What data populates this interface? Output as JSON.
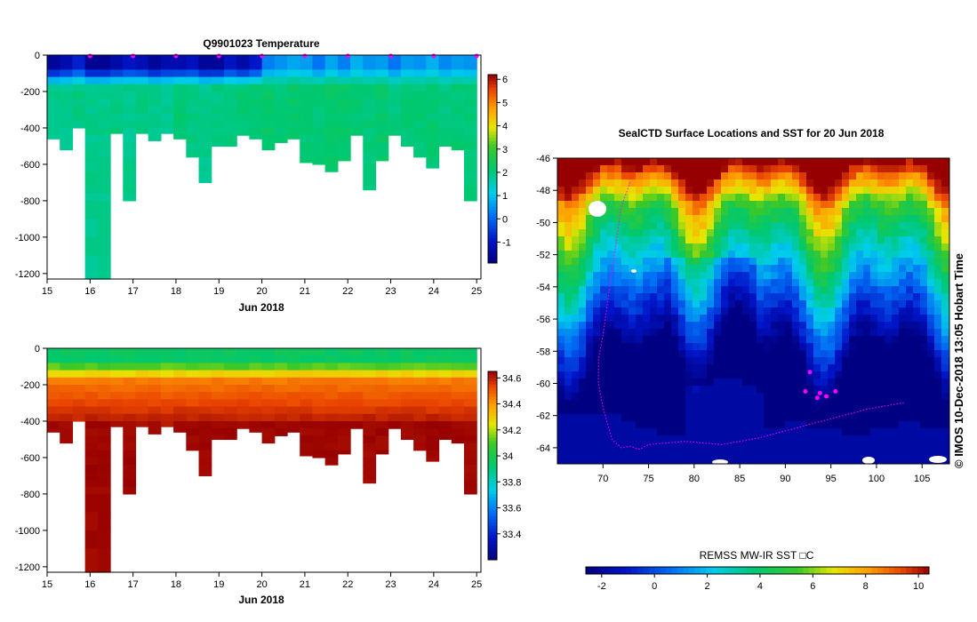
{
  "chart_data": [
    {
      "type": "heatmap",
      "id": "temp",
      "title": "Q9901023  Temperature",
      "xlabel": "Jun 2018",
      "xlim": [
        15,
        25.1
      ],
      "ylim": [
        -1230,
        0
      ],
      "x_ticks": [
        15,
        16,
        17,
        18,
        19,
        20,
        21,
        22,
        23,
        24,
        25
      ],
      "y_ticks": [
        0,
        -200,
        -400,
        -600,
        -800,
        -1000,
        -1200
      ],
      "colorbar": {
        "min": -1.9,
        "max": 6.2,
        "ticks": [
          -1,
          0,
          1,
          2,
          3,
          4,
          5,
          6
        ]
      },
      "surface_markers_x": [
        16,
        17,
        18,
        19,
        20,
        21,
        22,
        23,
        24,
        25
      ],
      "profile_max_depths": [
        460,
        520,
        400,
        1230,
        1230,
        430,
        800,
        430,
        470,
        430,
        460,
        560,
        700,
        500,
        500,
        440,
        460,
        520,
        480,
        460,
        590,
        600,
        640,
        580,
        440,
        740,
        580,
        440,
        500,
        560,
        620,
        500,
        520,
        800
      ],
      "surface_temps": [
        -1.6,
        -1.3,
        -0.8,
        -1.7,
        -1.7,
        -1.4,
        -1.0,
        -1.2,
        -1.6,
        -1.3,
        -1.3,
        -1.1,
        -1.6,
        -1.6,
        -1.0,
        -1.4,
        -0.9,
        0.3,
        0.5,
        0.7,
        0.6,
        0.2,
        0.7,
        0.3,
        0.8,
        0.5,
        0.6,
        0.2,
        0.6,
        0.5,
        0.8,
        0.4,
        0.6,
        0.5
      ],
      "deep_temps": [
        1.9,
        1.9,
        2.0,
        1.9,
        1.9,
        2.0,
        1.9,
        2.0,
        1.9,
        1.9,
        2.1,
        2.0,
        1.9,
        2.0,
        2.0,
        2.1,
        2.1,
        2.2,
        2.1,
        2.2,
        2.1,
        2.1,
        2.2,
        2.2,
        2.1,
        2.1,
        2.2,
        2.0,
        2.1,
        2.1,
        2.1,
        2.0,
        2.1,
        2.1
      ]
    },
    {
      "type": "heatmap",
      "id": "salt",
      "title": "",
      "xlabel": "Jun 2018",
      "xlim": [
        15,
        25.1
      ],
      "ylim": [
        -1230,
        0
      ],
      "x_ticks": [
        15,
        16,
        17,
        18,
        19,
        20,
        21,
        22,
        23,
        24,
        25
      ],
      "y_ticks": [
        0,
        -200,
        -400,
        -600,
        -800,
        -1000,
        -1200
      ],
      "colorbar": {
        "min": 33.2,
        "max": 34.65,
        "ticks": [
          "33.4",
          "33.6",
          "33.8",
          "34",
          "34.2",
          "34.4",
          "34.6"
        ]
      }
    },
    {
      "type": "heatmap",
      "id": "map",
      "title": "SealCTD Surface Locations and SST for 20 Jun 2018",
      "xlim": [
        65,
        108
      ],
      "ylim": [
        -65,
        -46
      ],
      "x_ticks": [
        70,
        75,
        80,
        85,
        90,
        95,
        100,
        105
      ],
      "y_ticks": [
        -46,
        -48,
        -50,
        -52,
        -54,
        -56,
        -58,
        -60,
        -62,
        -64
      ],
      "colorbar": {
        "label": "REMSS MW-IR SST □C",
        "min": -2.6,
        "max": 10.4,
        "ticks": [
          -2,
          0,
          2,
          4,
          6,
          8,
          10
        ]
      },
      "track_lon": [
        73,
        72,
        71.5,
        71,
        70.5,
        70,
        69.5,
        69.5,
        70,
        70.5,
        71,
        72,
        73,
        74,
        75,
        77,
        79,
        81,
        83,
        85,
        87,
        89,
        91,
        93,
        95,
        97,
        99,
        101,
        103
      ],
      "track_lat": [
        -47.5,
        -49,
        -51,
        -53,
        -55,
        -57,
        -58.5,
        -60,
        -61.5,
        -62.5,
        -63.5,
        -64,
        -63.9,
        -64.1,
        -63.8,
        -63.7,
        -63.6,
        -63.7,
        -63.8,
        -63.6,
        -63.4,
        -63.1,
        -62.8,
        -62.5,
        -62.2,
        -61.9,
        -61.6,
        -61.4,
        -61.2
      ],
      "locations_lon": [
        92.7,
        92.2,
        93.8,
        94.5,
        95.5,
        93.5
      ],
      "locations_lat": [
        -59.3,
        -60.5,
        -60.6,
        -60.8,
        -60.5,
        -60.9
      ]
    }
  ],
  "side_text": "©  IMOS 10-Dec-2018 13:05 Hobart Time"
}
